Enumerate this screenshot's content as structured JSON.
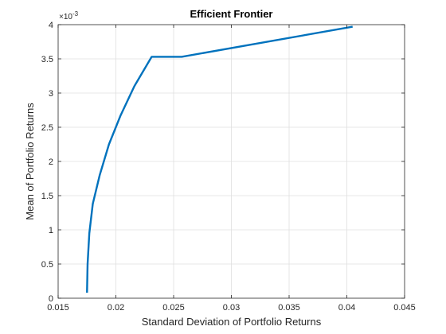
{
  "chart_data": {
    "type": "line",
    "title": "Efficient  Frontier",
    "xlabel": "Standard Deviation of Portfolio Returns",
    "ylabel": "Mean of Portfolio Returns",
    "y_exponent": {
      "base": "×10",
      "power": "-3"
    },
    "xlim": [
      0.015,
      0.045
    ],
    "ylim": [
      0,
      4
    ],
    "x_ticks": [
      {
        "value": 0.015,
        "label": "0.015"
      },
      {
        "value": 0.02,
        "label": "0.02"
      },
      {
        "value": 0.025,
        "label": "0.025"
      },
      {
        "value": 0.03,
        "label": "0.03"
      },
      {
        "value": 0.035,
        "label": "0.035"
      },
      {
        "value": 0.04,
        "label": "0.04"
      },
      {
        "value": 0.045,
        "label": "0.045"
      }
    ],
    "y_ticks": [
      {
        "value": 0,
        "label": "0"
      },
      {
        "value": 0.5,
        "label": "0.5"
      },
      {
        "value": 1,
        "label": "1"
      },
      {
        "value": 1.5,
        "label": "1.5"
      },
      {
        "value": 2,
        "label": "2"
      },
      {
        "value": 2.5,
        "label": "2.5"
      },
      {
        "value": 3,
        "label": "3"
      },
      {
        "value": 3.5,
        "label": "3.5"
      },
      {
        "value": 4,
        "label": "4"
      }
    ],
    "grid": true,
    "box": true,
    "series": [
      {
        "color": "#0072BD",
        "x": [
          0.0175,
          0.01755,
          0.0177,
          0.018,
          0.0186,
          0.0194,
          0.0204,
          0.0216,
          0.0231,
          0.0257,
          0.0405
        ],
        "y": [
          0.08,
          0.5,
          0.95,
          1.38,
          1.8,
          2.25,
          2.67,
          3.1,
          3.53,
          3.53,
          3.97
        ]
      }
    ]
  }
}
